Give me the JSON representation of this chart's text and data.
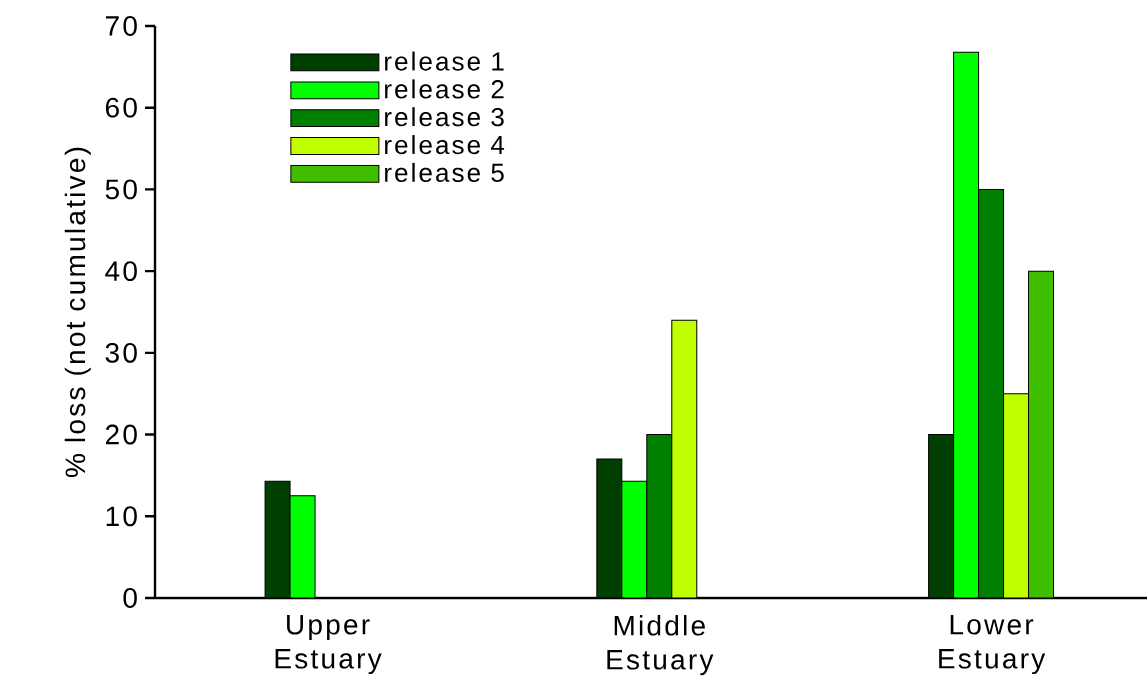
{
  "chart_data": {
    "type": "bar",
    "categories": [
      "Upper Estuary",
      "Middle Estuary",
      "Lower Estuary"
    ],
    "ylabel": "% loss (not cumulative)",
    "ylim": [
      0,
      70
    ],
    "yticks": [
      0,
      10,
      20,
      30,
      40,
      50,
      60,
      70
    ],
    "legend": "top left",
    "series": [
      {
        "name": "release 1",
        "color": "#003f00",
        "values": [
          14.3,
          17.0,
          20.0
        ]
      },
      {
        "name": "release 2",
        "color": "#00ff00",
        "values": [
          12.5,
          14.3,
          66.8
        ]
      },
      {
        "name": "release 3",
        "color": "#007f00",
        "values": [
          null,
          20.0,
          50.0
        ]
      },
      {
        "name": "release 4",
        "color": "#bfff00",
        "values": [
          null,
          34.0,
          25.0
        ]
      },
      {
        "name": "release 5",
        "color": "#3fbf00",
        "values": [
          null,
          null,
          40.0
        ]
      }
    ]
  }
}
